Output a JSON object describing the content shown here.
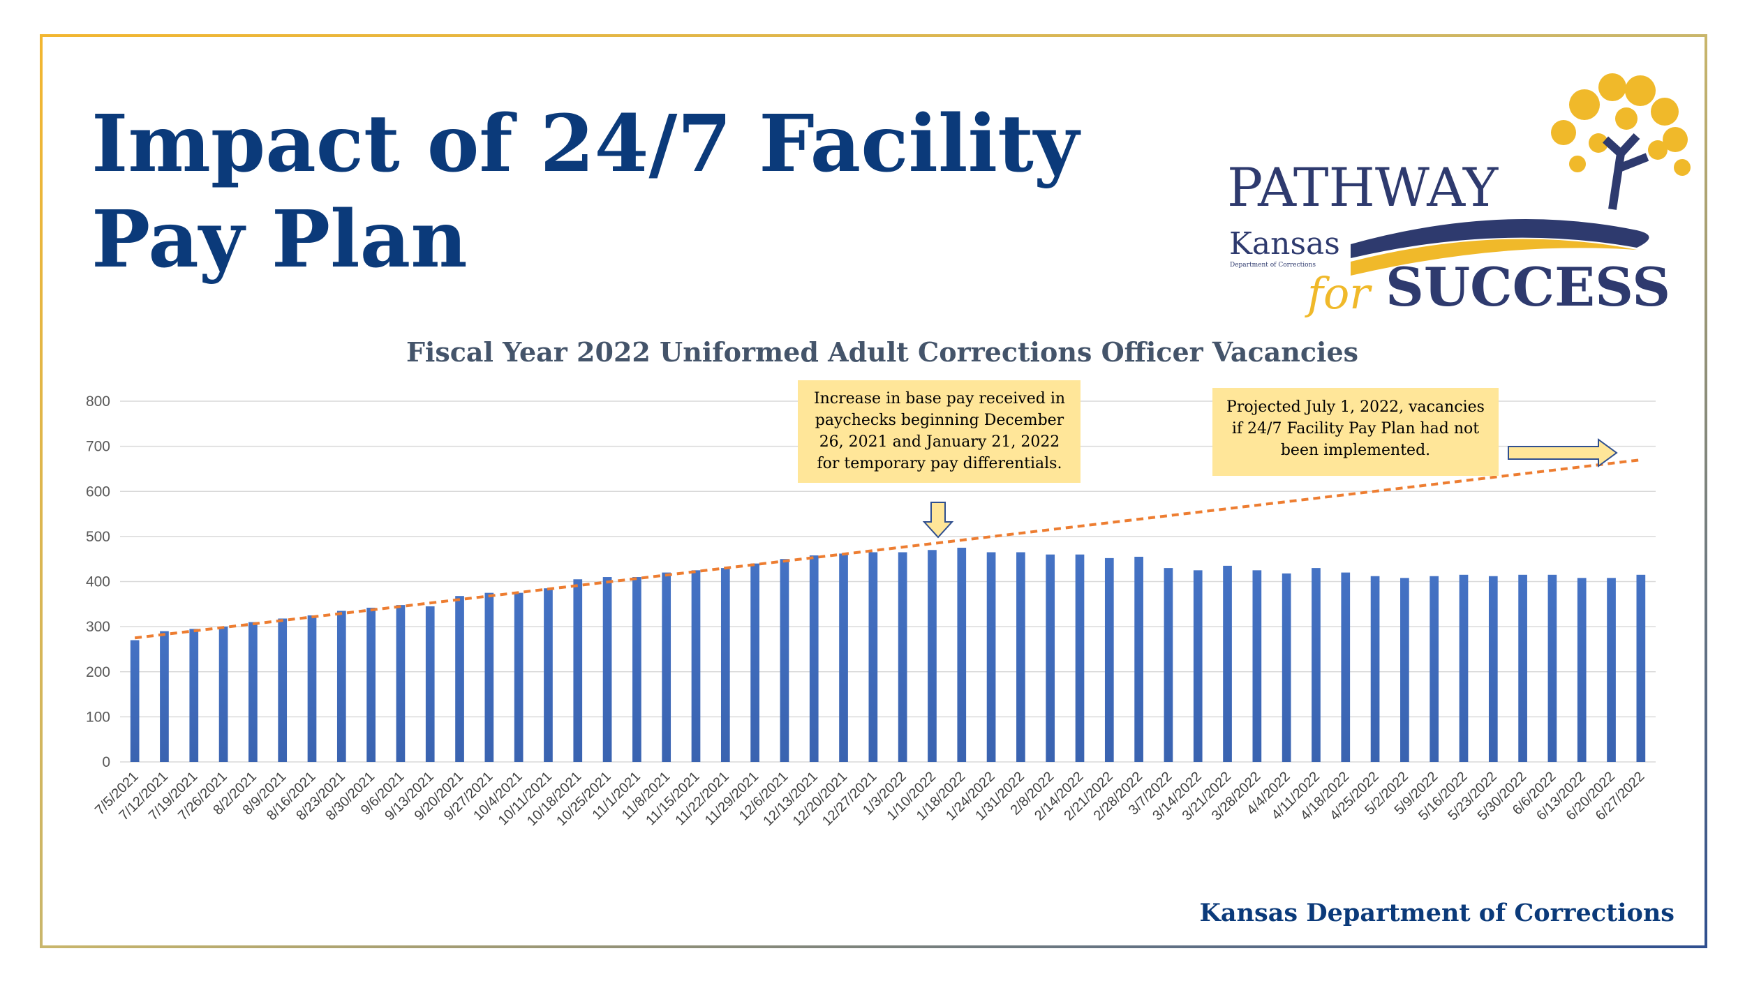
{
  "header": {
    "title_lines": [
      "Impact of 24/7 Facility",
      "Pay Plan"
    ]
  },
  "logo": {
    "top": "PATHWAY",
    "agency": "Kansas",
    "agency_sub": "Department of Corrections",
    "for": "for",
    "bottom": "SUCCESS"
  },
  "footer": "Kansas Department of Corrections",
  "chart_data": {
    "type": "bar",
    "title": "Fiscal Year 2022 Uniformed Adult Corrections Officer Vacancies",
    "categories": [
      "7/5/2021",
      "7/12/2021",
      "7/19/2021",
      "7/26/2021",
      "8/2/2021",
      "8/9/2021",
      "8/16/2021",
      "8/23/2021",
      "8/30/2021",
      "9/6/2021",
      "9/13/2021",
      "9/20/2021",
      "9/27/2021",
      "10/4/2021",
      "10/11/2021",
      "10/18/2021",
      "10/25/2021",
      "11/1/2021",
      "11/8/2021",
      "11/15/2021",
      "11/22/2021",
      "11/29/2021",
      "12/6/2021",
      "12/13/2021",
      "12/20/2021",
      "12/27/2021",
      "1/3/2022",
      "1/10/2022",
      "1/18/2022",
      "1/24/2022",
      "1/31/2022",
      "2/8/2022",
      "2/14/2022",
      "2/21/2022",
      "2/28/2022",
      "3/7/2022",
      "3/14/2022",
      "3/21/2022",
      "3/28/2022",
      "4/4/2022",
      "4/11/2022",
      "4/18/2022",
      "4/25/2022",
      "5/2/2022",
      "5/9/2022",
      "5/16/2022",
      "5/23/2022",
      "5/30/2022",
      "6/6/2022",
      "6/13/2022",
      "6/20/2022",
      "6/27/2022"
    ],
    "values": [
      270,
      290,
      295,
      300,
      310,
      318,
      325,
      335,
      342,
      348,
      345,
      368,
      375,
      375,
      385,
      405,
      410,
      410,
      420,
      425,
      430,
      440,
      450,
      458,
      462,
      465,
      465,
      470,
      475,
      465,
      465,
      460,
      460,
      452,
      455,
      430,
      425,
      435,
      425,
      418,
      430,
      420,
      412,
      408,
      412,
      415,
      412,
      415,
      415,
      408,
      408,
      415
    ],
    "color": "#4472c4",
    "trendline": {
      "values": [
        275,
        670
      ],
      "color": "#ed7d31"
    },
    "ylim": [
      0,
      800
    ],
    "yticks": [
      0,
      100,
      200,
      300,
      400,
      500,
      600,
      700,
      800
    ],
    "grid": true,
    "annotations": [
      {
        "lines": [
          "Increase in base pay received in",
          "paychecks beginning December",
          "26, 2021 and January 21, 2022",
          "for temporary pay differentials."
        ]
      },
      {
        "lines": [
          "Projected July 1, 2022, vacancies",
          "if 24/7 Facility Pay Plan had not",
          "been implemented."
        ]
      }
    ]
  }
}
